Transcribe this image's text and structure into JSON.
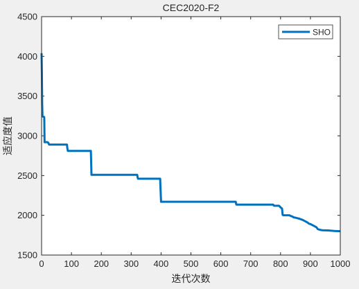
{
  "chart_data": {
    "type": "line",
    "title": "CEC2020-F2",
    "xlabel": "迭代次数",
    "ylabel": "适应度值",
    "xlim": [
      0,
      1000
    ],
    "ylim": [
      1500,
      4500
    ],
    "xticks": [
      0,
      100,
      200,
      300,
      400,
      500,
      600,
      700,
      800,
      900,
      1000
    ],
    "yticks": [
      1500,
      2000,
      2500,
      3000,
      3500,
      4000,
      4500
    ],
    "grid": false,
    "legend_position": "top-right",
    "series": [
      {
        "name": "SHO",
        "color": "#0072bd",
        "x": [
          0,
          1,
          2,
          3,
          5,
          8,
          9,
          10,
          12,
          20,
          23,
          25,
          85,
          86,
          88,
          165,
          167,
          170,
          320,
          322,
          323,
          397,
          398,
          400,
          650,
          651,
          652,
          775,
          778,
          795,
          800,
          805,
          807,
          810,
          815,
          820,
          830,
          835,
          840,
          843,
          850,
          855,
          860,
          865,
          868,
          872,
          875,
          880,
          885,
          890,
          895,
          900,
          905,
          910,
          915,
          920,
          925,
          930,
          935,
          940,
          960,
          980,
          1000
        ],
        "y": [
          4040,
          3800,
          3400,
          3250,
          3240,
          3240,
          3230,
          2920,
          2920,
          2920,
          2910,
          2890,
          2890,
          2850,
          2810,
          2810,
          2510,
          2510,
          2510,
          2470,
          2460,
          2460,
          2350,
          2170,
          2170,
          2150,
          2135,
          2135,
          2120,
          2120,
          2100,
          2085,
          2005,
          2000,
          2000,
          2000,
          2000,
          1990,
          1985,
          1975,
          1970,
          1965,
          1960,
          1955,
          1950,
          1945,
          1940,
          1930,
          1920,
          1910,
          1895,
          1890,
          1880,
          1870,
          1860,
          1850,
          1825,
          1820,
          1815,
          1812,
          1810,
          1803,
          1800
        ]
      }
    ]
  }
}
